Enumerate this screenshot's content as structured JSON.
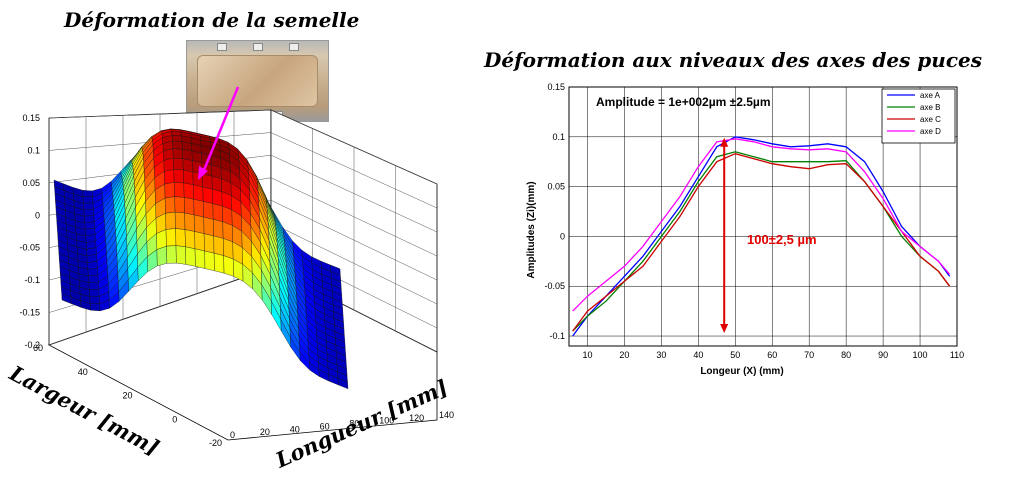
{
  "left_figure": {
    "title": "Déformation de la semelle",
    "photo_icon": "power-module-photo",
    "arrow_color": "#ff00ff",
    "x_axis_label": "Longueur [mm]",
    "y_axis_label": "Largeur [mm]",
    "z_ticks": [
      "-0.2",
      "-0.15",
      "-0.1",
      "-0.05",
      "0",
      "0.05",
      "0.1",
      "0.15"
    ],
    "x_ticks": [
      "0",
      "20",
      "40",
      "60",
      "80",
      "100",
      "120",
      "140"
    ],
    "y_ticks": [
      "-20",
      "0",
      "20",
      "40",
      "60"
    ],
    "colormap": "jet"
  },
  "chart_data": [
    {
      "type": "surface",
      "title": "Déformation de la semelle",
      "xlabel": "Longueur [mm]",
      "ylabel": "Largeur [mm]",
      "zlabel": "",
      "xlim": [
        0,
        140
      ],
      "ylim": [
        -20,
        60
      ],
      "zlim": [
        -0.2,
        0.15
      ],
      "colormap": "jet",
      "grid": true
    },
    {
      "type": "line",
      "title": "Déformation aux niveaux des axes des puces",
      "xlabel": "Longeur (X) (mm)",
      "ylabel": "Amplitudes (Zi)(mm)",
      "xlim": [
        5,
        110
      ],
      "ylim": [
        -0.11,
        0.15
      ],
      "x_ticks": [
        "10",
        "20",
        "30",
        "40",
        "50",
        "60",
        "70",
        "80",
        "90",
        "100",
        "110"
      ],
      "y_ticks": [
        "0.15",
        "0.1",
        "0.05",
        "0",
        "-0.05",
        "-0.1"
      ],
      "grid": true,
      "legend_position": "top-right",
      "annotation_text": "Amplitude =  1e+002µm ±2.5µm",
      "arrow_label": "100±2,5 µm",
      "arrow_color": "#e00000",
      "arrow_range": [
        -0.097,
        0.099
      ],
      "arrow_x": 47,
      "series": [
        {
          "name": "axe A",
          "color": "#0000ff",
          "x": [
            6,
            10,
            15,
            20,
            25,
            30,
            35,
            40,
            45,
            50,
            55,
            60,
            65,
            70,
            75,
            80,
            85,
            90,
            95,
            100,
            105,
            108
          ],
          "y": [
            -0.1,
            -0.08,
            -0.06,
            -0.04,
            -0.02,
            0.005,
            0.03,
            0.06,
            0.09,
            0.1,
            0.097,
            0.093,
            0.09,
            0.091,
            0.093,
            0.09,
            0.075,
            0.045,
            0.01,
            -0.01,
            -0.025,
            -0.04
          ]
        },
        {
          "name": "axe B",
          "color": "#008000",
          "x": [
            6,
            10,
            15,
            20,
            25,
            30,
            35,
            40,
            45,
            50,
            55,
            60,
            65,
            70,
            75,
            80,
            85,
            90,
            95,
            100,
            105,
            108
          ],
          "y": [
            -0.095,
            -0.08,
            -0.065,
            -0.045,
            -0.025,
            0,
            0.025,
            0.055,
            0.08,
            0.085,
            0.08,
            0.075,
            0.075,
            0.075,
            0.075,
            0.076,
            0.055,
            0.03,
            0,
            -0.02,
            -0.035,
            -0.05
          ]
        },
        {
          "name": "axe C",
          "color": "#cc0000",
          "x": [
            6,
            10,
            15,
            20,
            25,
            30,
            35,
            40,
            45,
            50,
            55,
            60,
            65,
            70,
            75,
            80,
            85,
            90,
            95,
            100,
            105,
            108
          ],
          "y": [
            -0.095,
            -0.075,
            -0.06,
            -0.045,
            -0.03,
            -0.005,
            0.02,
            0.05,
            0.075,
            0.083,
            0.078,
            0.073,
            0.07,
            0.068,
            0.072,
            0.073,
            0.055,
            0.03,
            0.005,
            -0.02,
            -0.035,
            -0.05
          ]
        },
        {
          "name": "axe D",
          "color": "#ff00ff",
          "x": [
            6,
            10,
            15,
            20,
            25,
            30,
            35,
            40,
            45,
            50,
            55,
            60,
            65,
            70,
            75,
            80,
            85,
            90,
            95,
            100,
            105,
            108
          ],
          "y": [
            -0.075,
            -0.06,
            -0.045,
            -0.03,
            -0.01,
            0.015,
            0.04,
            0.07,
            0.095,
            0.098,
            0.095,
            0.09,
            0.088,
            0.087,
            0.088,
            0.085,
            0.065,
            0.038,
            0.005,
            -0.01,
            -0.025,
            -0.038
          ]
        }
      ]
    }
  ]
}
